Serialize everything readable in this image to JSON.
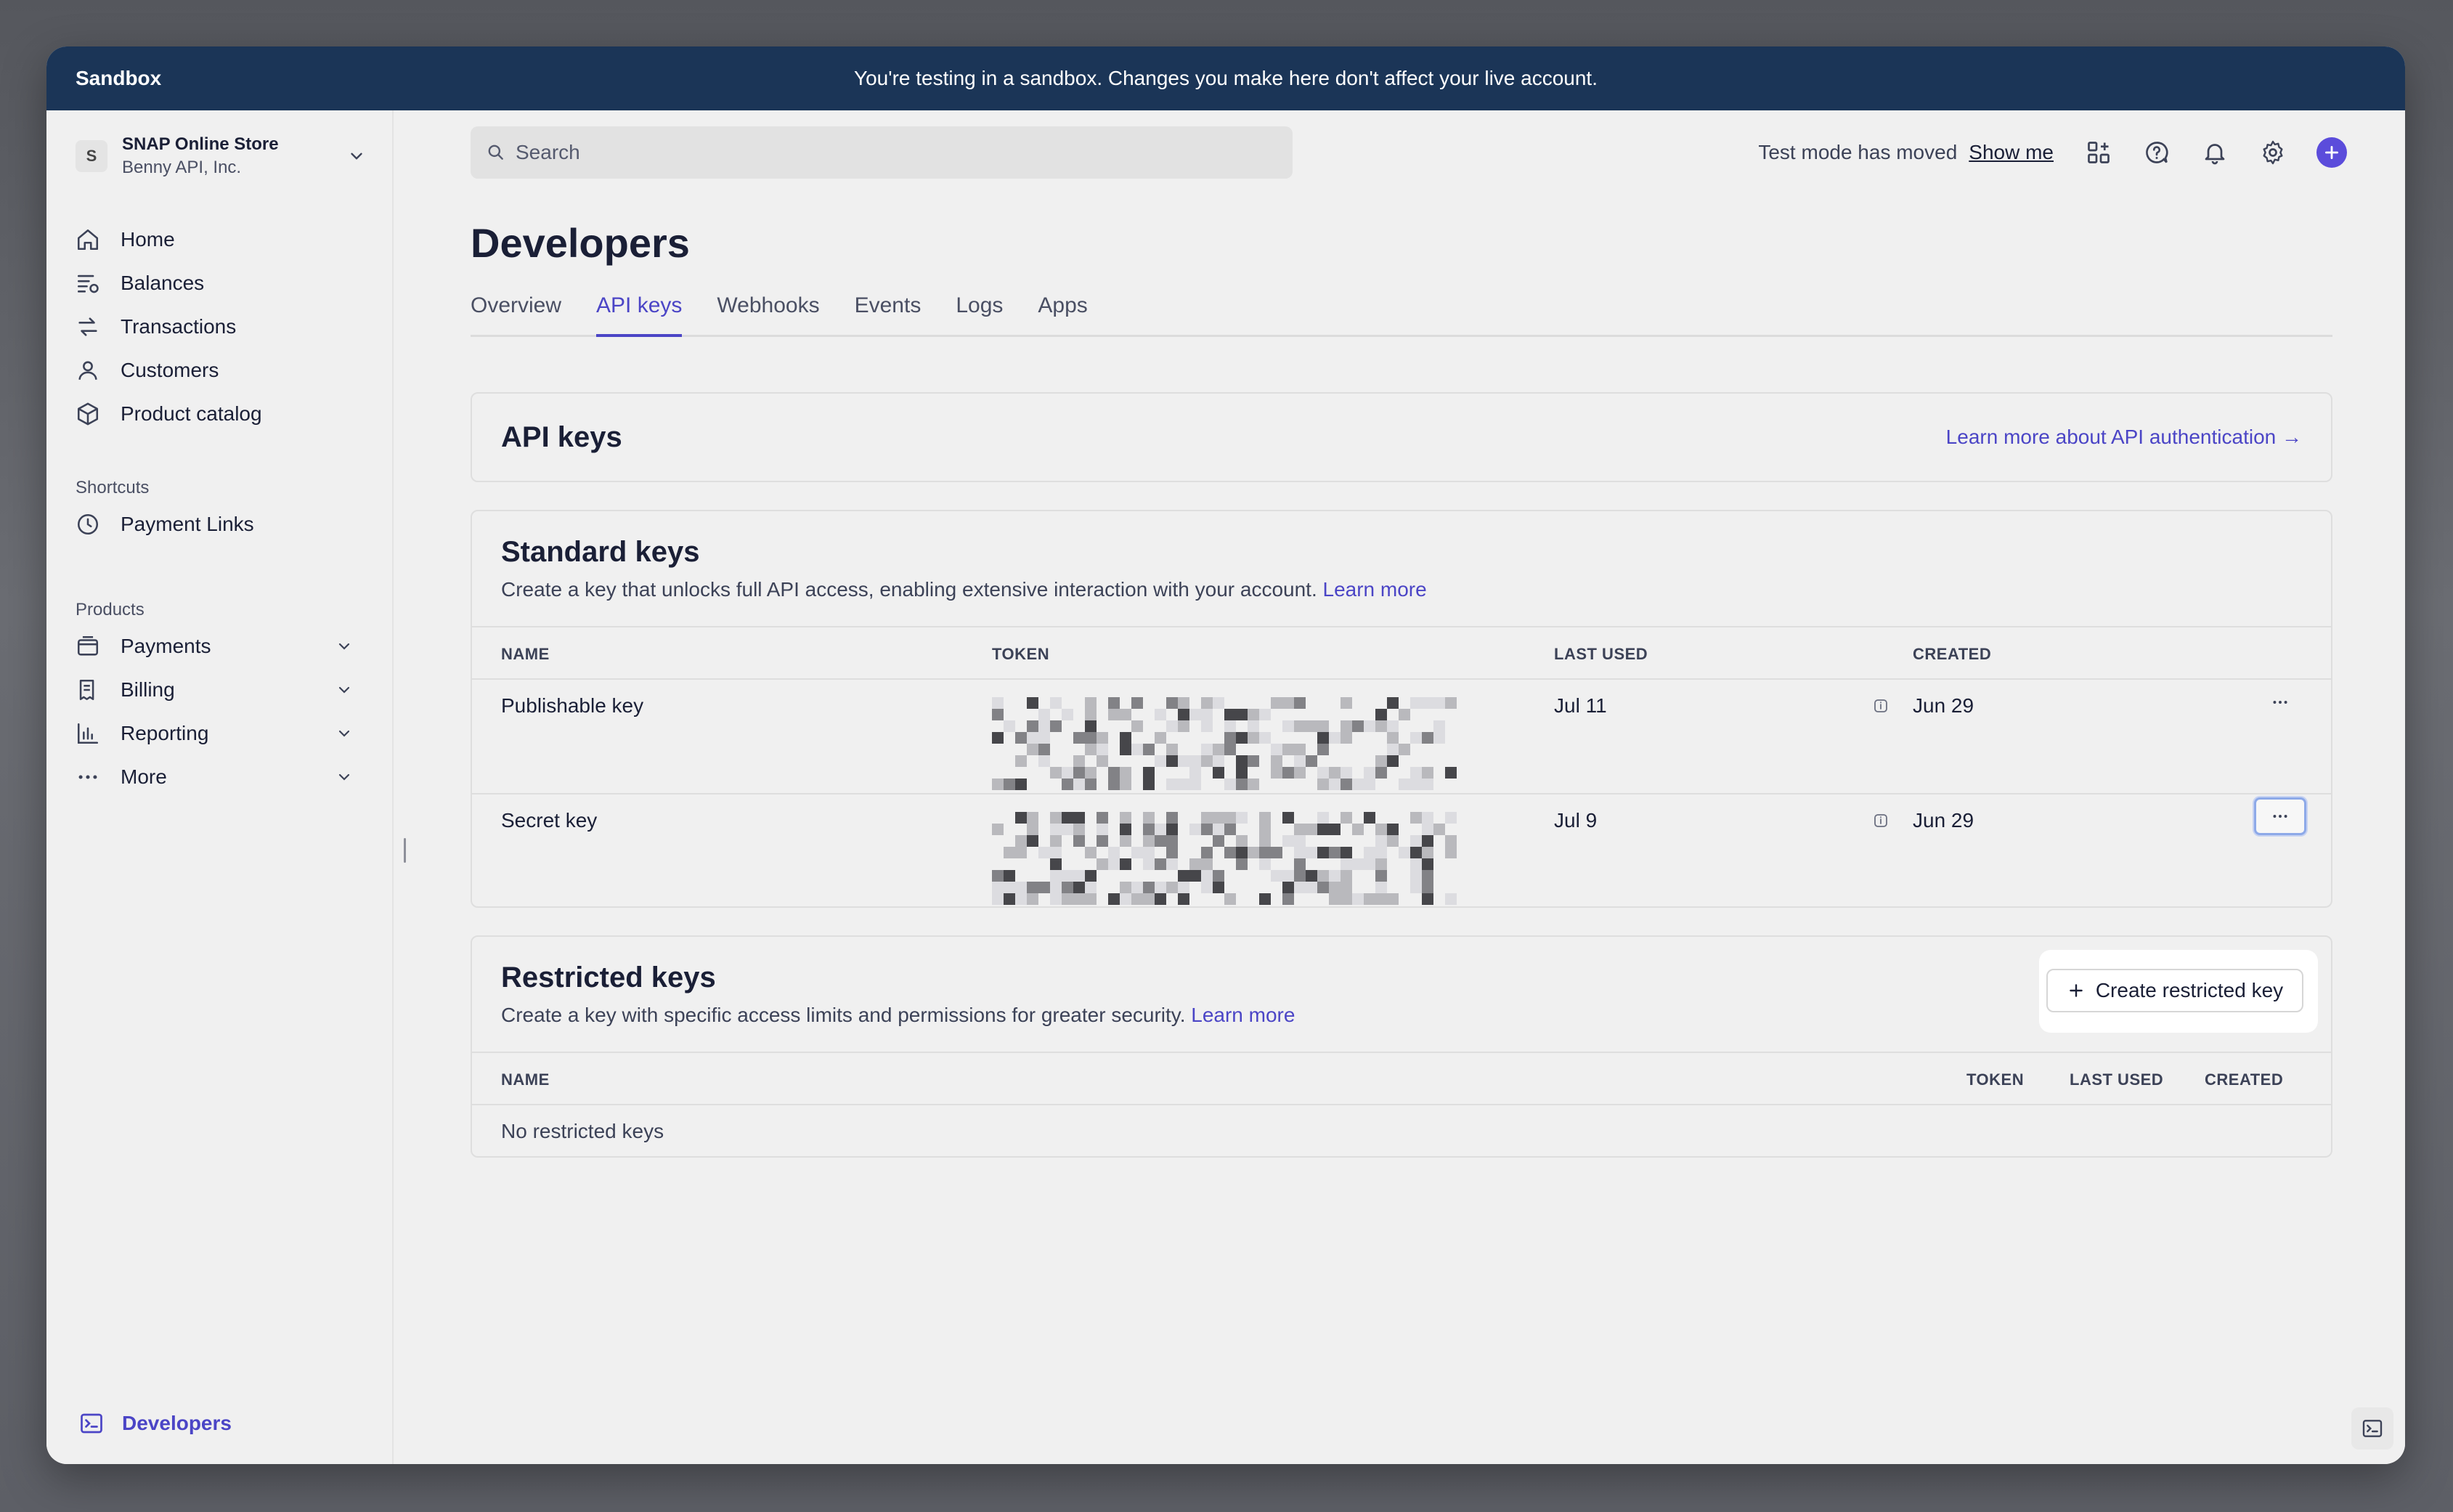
{
  "banner": {
    "title": "Sandbox",
    "message": "You're testing in a sandbox. Changes you make here don't affect your live account."
  },
  "account": {
    "initial": "S",
    "store": "SNAP Online Store",
    "company": "Benny API, Inc."
  },
  "sidebar": {
    "items": [
      {
        "label": "Home",
        "icon": "home-icon"
      },
      {
        "label": "Balances",
        "icon": "balances-icon"
      },
      {
        "label": "Transactions",
        "icon": "transactions-icon"
      },
      {
        "label": "Customers",
        "icon": "customers-icon"
      },
      {
        "label": "Product catalog",
        "icon": "product-catalog-icon"
      }
    ],
    "shortcuts_label": "Shortcuts",
    "shortcuts": [
      {
        "label": "Payment Links",
        "icon": "clock-icon"
      }
    ],
    "products_label": "Products",
    "products": [
      {
        "label": "Payments",
        "icon": "payments-icon"
      },
      {
        "label": "Billing",
        "icon": "billing-icon"
      },
      {
        "label": "Reporting",
        "icon": "reporting-icon"
      },
      {
        "label": "More",
        "icon": "more-dots-icon"
      }
    ],
    "developers_label": "Developers"
  },
  "topbar": {
    "search_placeholder": "Search",
    "test_mode_text": "Test mode has moved",
    "show_me": "Show me"
  },
  "page": {
    "title": "Developers",
    "tabs": [
      "Overview",
      "API keys",
      "Webhooks",
      "Events",
      "Logs",
      "Apps"
    ],
    "active_tab": "API keys"
  },
  "api_keys_card": {
    "title": "API keys",
    "learn_link": "Learn more about API authentication →"
  },
  "standard_keys": {
    "title": "Standard keys",
    "description": "Create a key that unlocks full API access, enabling extensive interaction with your account.",
    "learn_more": "Learn more",
    "columns": {
      "name": "NAME",
      "token": "TOKEN",
      "last_used": "LAST USED",
      "created": "CREATED"
    },
    "rows": [
      {
        "name": "Publishable key",
        "last_used": "Jul 11",
        "created": "Jun 29"
      },
      {
        "name": "Secret key",
        "last_used": "Jul 9",
        "created": "Jun 29"
      }
    ]
  },
  "restricted_keys": {
    "title": "Restricted keys",
    "description": "Create a key with specific access limits and permissions for greater security.",
    "learn_more": "Learn more",
    "create_button": "Create restricted key",
    "columns": {
      "name": "NAME",
      "token": "TOKEN",
      "last_used": "LAST USED",
      "created": "CREATED"
    },
    "empty": "No restricted keys"
  },
  "colors": {
    "accent": "#4b45c6",
    "banner": "#1b3557",
    "plus_button": "#5b4cdb"
  }
}
